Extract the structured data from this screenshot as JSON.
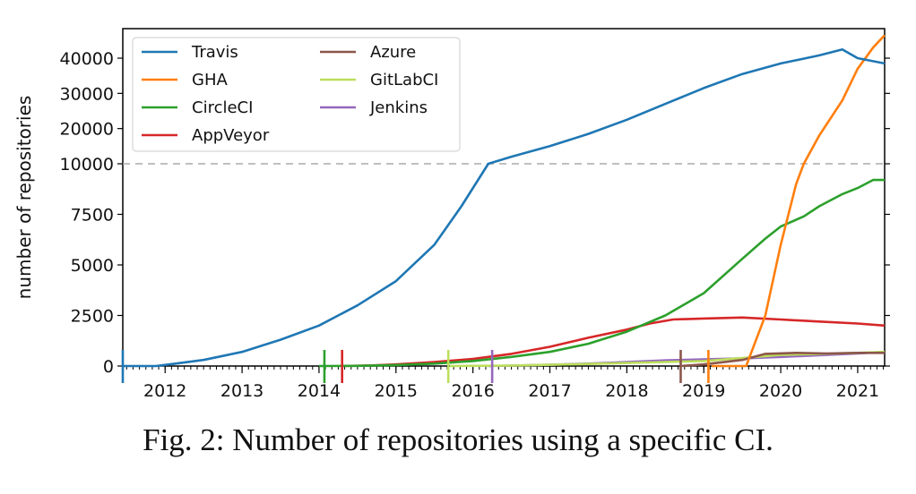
{
  "caption": "Fig. 2: Number of repositories using a specific CI.",
  "chart_data": {
    "type": "line",
    "ylabel": "number of repositories",
    "xlabel": "",
    "title": "",
    "x_ticks": [
      "2012",
      "2013",
      "2014",
      "2015",
      "2016",
      "2017",
      "2018",
      "2019",
      "2020",
      "2021"
    ],
    "y_ticks": [
      "0",
      "2500",
      "5000",
      "7500",
      "10000",
      "20000",
      "30000",
      "40000"
    ],
    "y_scale_note": "piecewise: linear 0-10000, compressed above 10000",
    "xlim": [
      2011.45,
      2021.35
    ],
    "ylim": [
      0,
      46500
    ],
    "reference_line": 10000,
    "legend_position": "top-left",
    "legend_columns": 2,
    "grid": false,
    "series": [
      {
        "name": "Travis",
        "color": "#1f77b4",
        "x": [
          2011.45,
          2011.88,
          2012.1,
          2012.5,
          2013.0,
          2013.5,
          2014.0,
          2014.5,
          2015.0,
          2015.5,
          2015.85,
          2016.2,
          2016.5,
          2017.0,
          2017.5,
          2018.0,
          2018.5,
          2019.0,
          2019.5,
          2020.0,
          2020.5,
          2020.8,
          2021.0,
          2021.35
        ],
        "y": [
          0,
          0,
          100,
          300,
          700,
          1300,
          2000,
          3000,
          4200,
          6000,
          7900,
          10000,
          12000,
          15000,
          18500,
          22500,
          27000,
          31500,
          35500,
          38500,
          40800,
          42500,
          40000,
          38500
        ]
      },
      {
        "name": "GHA",
        "color": "#ff7f0e",
        "x": [
          2019.1,
          2019.55,
          2019.8,
          2020.0,
          2020.2,
          2020.3,
          2020.5,
          2020.8,
          2021.0,
          2021.2,
          2021.35
        ],
        "y": [
          0,
          0,
          2500,
          6000,
          9000,
          10000,
          18000,
          28000,
          37000,
          43000,
          46500
        ]
      },
      {
        "name": "CircleCI",
        "color": "#2ca02c",
        "x": [
          2014.0,
          2014.5,
          2015.0,
          2015.5,
          2016.0,
          2016.5,
          2017.0,
          2017.5,
          2018.0,
          2018.5,
          2019.0,
          2019.5,
          2019.8,
          2020.0,
          2020.3,
          2020.5,
          2020.8,
          2021.0,
          2021.2,
          2021.35
        ],
        "y": [
          0,
          10,
          50,
          120,
          250,
          450,
          700,
          1100,
          1700,
          2500,
          3600,
          5300,
          6300,
          6900,
          7400,
          7900,
          8500,
          8800,
          9200,
          9200
        ]
      },
      {
        "name": "AppVeyor",
        "color": "#d62728",
        "x": [
          2014.3,
          2014.7,
          2015.0,
          2015.5,
          2016.0,
          2016.5,
          2017.0,
          2017.5,
          2018.0,
          2018.3,
          2018.6,
          2019.0,
          2019.5,
          2020.0,
          2020.5,
          2021.0,
          2021.35
        ],
        "y": [
          0,
          30,
          80,
          200,
          350,
          600,
          950,
          1400,
          1800,
          2100,
          2300,
          2350,
          2400,
          2300,
          2200,
          2100,
          2000
        ]
      },
      {
        "name": "Azure",
        "color": "#8c564b",
        "x": [
          2018.7,
          2019.0,
          2019.5,
          2019.8,
          2020.2,
          2020.6,
          2021.0,
          2021.35
        ],
        "y": [
          0,
          80,
          300,
          600,
          650,
          620,
          650,
          650
        ]
      },
      {
        "name": "GitLabCI",
        "color": "#bcdf5a",
        "x": [
          2015.7,
          2016.5,
          2017.0,
          2017.5,
          2018.0,
          2018.5,
          2019.0,
          2019.5,
          2020.0,
          2020.5,
          2021.0,
          2021.35
        ],
        "y": [
          0,
          20,
          60,
          100,
          150,
          200,
          250,
          400,
          550,
          600,
          650,
          700
        ]
      },
      {
        "name": "Jenkins",
        "color": "#9467bd",
        "x": [
          2016.2,
          2016.5,
          2017.0,
          2017.5,
          2018.0,
          2018.5,
          2019.0,
          2019.5,
          2020.0,
          2020.5,
          2021.0,
          2021.35
        ],
        "y": [
          0,
          20,
          60,
          120,
          200,
          280,
          330,
          380,
          450,
          530,
          620,
          700
        ]
      }
    ],
    "start_markers": [
      {
        "series": "Travis",
        "x": 2011.45
      },
      {
        "series": "CircleCI",
        "x": 2014.07
      },
      {
        "series": "AppVeyor",
        "x": 2014.3
      },
      {
        "series": "GitLabCI",
        "x": 2015.68
      },
      {
        "series": "Jenkins",
        "x": 2016.25
      },
      {
        "series": "Azure",
        "x": 2018.7
      },
      {
        "series": "GHA",
        "x": 2019.06
      }
    ]
  }
}
